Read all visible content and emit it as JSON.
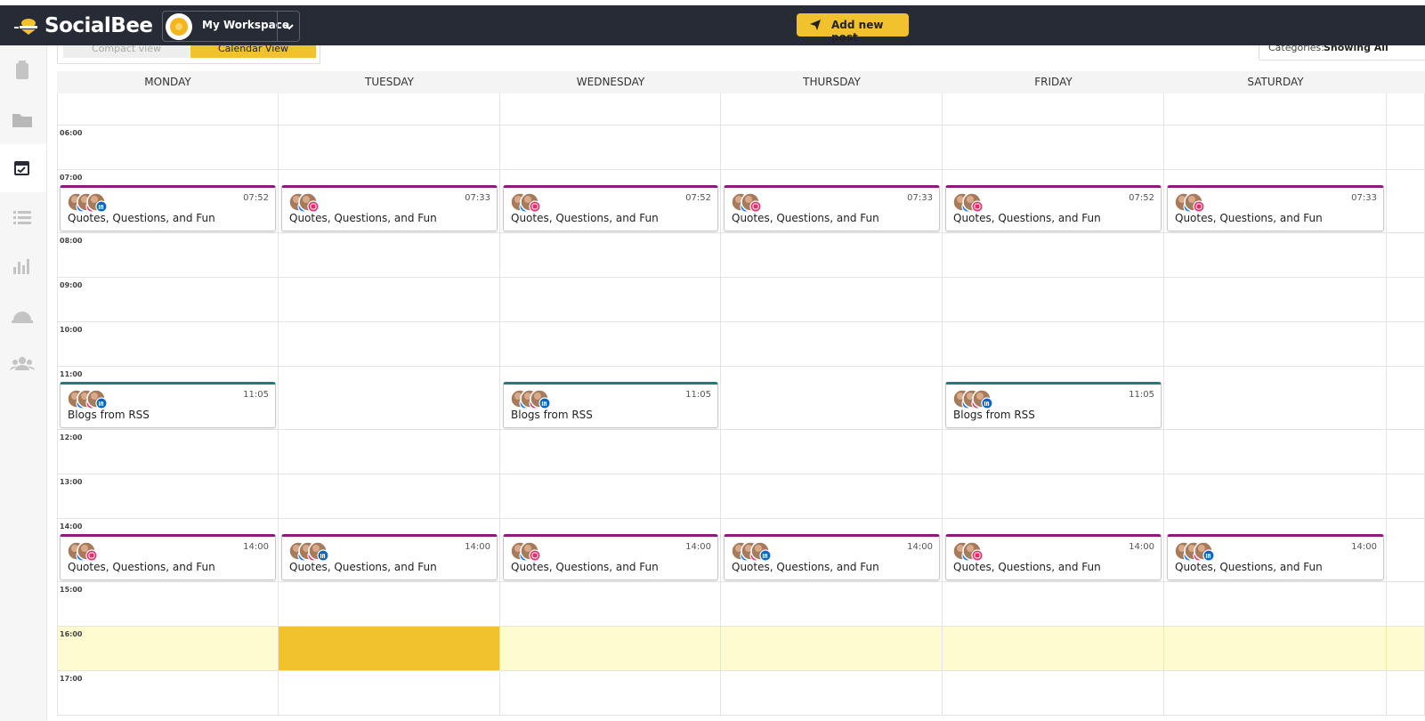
{
  "header": {
    "brand": "SocialBee",
    "workspace": "My Workspace",
    "add_button": "Add new post"
  },
  "toolbar": {
    "views": [
      "Compact view",
      "Calendar View"
    ],
    "categories_label": "Categories:",
    "categories_value": "Showing All"
  },
  "calendar": {
    "days": [
      "MONDAY",
      "TUESDAY",
      "WEDNESDAY",
      "THURSDAY",
      "FRIDAY",
      "SATURDAY"
    ],
    "rows": [
      {
        "time": "06:00",
        "cells": [
          null,
          null,
          null,
          null,
          null,
          null
        ]
      },
      {
        "time": "07:00",
        "cells": [
          {
            "time": "07:52",
            "title": "Quotes, Questions, and Fun",
            "networks": [
              "facebook",
              "instagram",
              "linkedin"
            ],
            "color": "#8b1a82"
          },
          {
            "time": "07:33",
            "title": "Quotes, Questions, and Fun",
            "networks": [
              "facebook",
              "instagram"
            ],
            "color": "#8b1a82"
          },
          {
            "time": "07:52",
            "title": "Quotes, Questions, and Fun",
            "networks": [
              "facebook",
              "instagram"
            ],
            "color": "#8b1a82"
          },
          {
            "time": "07:33",
            "title": "Quotes, Questions, and Fun",
            "networks": [
              "facebook",
              "instagram"
            ],
            "color": "#8b1a82"
          },
          {
            "time": "07:52",
            "title": "Quotes, Questions, and Fun",
            "networks": [
              "facebook",
              "instagram"
            ],
            "color": "#8b1a82"
          },
          {
            "time": "07:33",
            "title": "Quotes, Questions, and Fun",
            "networks": [
              "facebook",
              "instagram"
            ],
            "color": "#8b1a82"
          }
        ]
      },
      {
        "time": "08:00",
        "cells": [
          null,
          null,
          null,
          null,
          null,
          null
        ]
      },
      {
        "time": "09:00",
        "cells": [
          null,
          null,
          null,
          null,
          null,
          null
        ]
      },
      {
        "time": "10:00",
        "cells": [
          null,
          null,
          null,
          null,
          null,
          null
        ]
      },
      {
        "time": "11:00",
        "cells": [
          {
            "time": "11:05",
            "title": "Blogs from RSS",
            "networks": [
              "facebook",
              "instagram",
              "linkedin"
            ],
            "color": "#1a7f7a"
          },
          null,
          {
            "time": "11:05",
            "title": "Blogs from RSS",
            "networks": [
              "facebook",
              "instagram",
              "linkedin"
            ],
            "color": "#1a7f7a"
          },
          null,
          {
            "time": "11:05",
            "title": "Blogs from RSS",
            "networks": [
              "facebook",
              "instagram",
              "linkedin"
            ],
            "color": "#1a7f7a"
          },
          null
        ]
      },
      {
        "time": "12:00",
        "cells": [
          null,
          null,
          null,
          null,
          null,
          null
        ]
      },
      {
        "time": "13:00",
        "cells": [
          null,
          null,
          null,
          null,
          null,
          null
        ]
      },
      {
        "time": "14:00",
        "cells": [
          {
            "time": "14:00",
            "title": "Quotes, Questions, and Fun",
            "networks": [
              "facebook",
              "instagram"
            ],
            "color": "#8b1a82"
          },
          {
            "time": "14:00",
            "title": "Quotes, Questions, and Fun",
            "networks": [
              "facebook",
              "instagram",
              "linkedin"
            ],
            "color": "#8b1a82"
          },
          {
            "time": "14:00",
            "title": "Quotes, Questions, and Fun",
            "networks": [
              "facebook",
              "instagram"
            ],
            "color": "#8b1a82"
          },
          {
            "time": "14:00",
            "title": "Quotes, Questions, and Fun",
            "networks": [
              "facebook",
              "instagram",
              "linkedin"
            ],
            "color": "#8b1a82"
          },
          {
            "time": "14:00",
            "title": "Quotes, Questions, and Fun",
            "networks": [
              "facebook",
              "instagram"
            ],
            "color": "#8b1a82"
          },
          {
            "time": "14:00",
            "title": "Quotes, Questions, and Fun",
            "networks": [
              "facebook",
              "instagram",
              "linkedin"
            ],
            "color": "#8b1a82"
          }
        ]
      },
      {
        "time": "15:00",
        "cells": [
          null,
          null,
          null,
          null,
          null,
          null
        ]
      },
      {
        "time": "16:00",
        "highlight": true,
        "cells": [
          null,
          null,
          null,
          null,
          null,
          null
        ]
      },
      {
        "time": "17:00",
        "cells": [
          null,
          null,
          null,
          null,
          null,
          null
        ]
      }
    ]
  }
}
